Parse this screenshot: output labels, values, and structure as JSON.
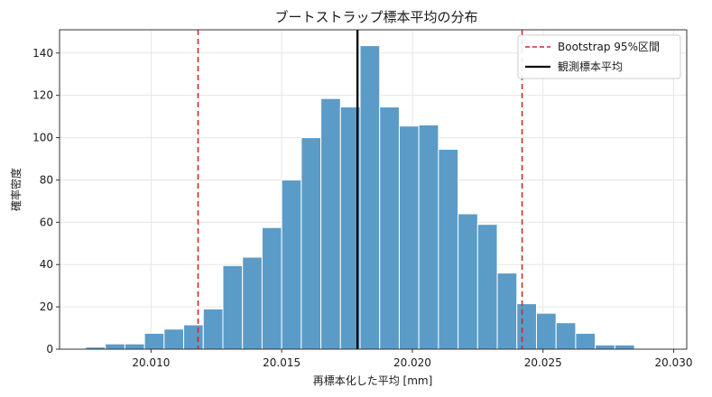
{
  "chart_data": {
    "type": "bar",
    "title": "ブートストラップ標本平均の分布",
    "xlabel": "再標本化した平均 [mm]",
    "ylabel": "確率密度",
    "xlim": [
      20.0065,
      20.0305
    ],
    "ylim": [
      0,
      151
    ],
    "xticks": [
      "20.010",
      "20.015",
      "20.020",
      "20.025",
      "20.030"
    ],
    "xtick_values": [
      20.01,
      20.015,
      20.02,
      20.025,
      20.03
    ],
    "yticks": [
      "0",
      "20",
      "40",
      "60",
      "80",
      "100",
      "120",
      "140"
    ],
    "ytick_values": [
      0,
      20,
      40,
      60,
      80,
      100,
      120,
      140
    ],
    "grid": true,
    "legend_position": "top-right",
    "bar_color": "#5b9bc8",
    "bins": {
      "start": 20.0075,
      "width": 0.00075,
      "values": [
        1,
        2.5,
        2.5,
        7.5,
        9.5,
        11.5,
        19,
        39.5,
        43.5,
        57.5,
        80,
        100,
        118.5,
        114.5,
        143.5,
        114.5,
        105.5,
        106,
        94.5,
        64,
        59,
        36,
        21.5,
        17,
        12.5,
        7.5,
        2,
        2,
        0,
        0
      ]
    },
    "lines": [
      {
        "name": "Bootstrap 95%区間",
        "style": "dashed",
        "color": "#d62728",
        "x": [
          20.0118,
          20.0242
        ]
      },
      {
        "name": "観測標本平均",
        "style": "solid",
        "color": "#000000",
        "x": [
          20.0179
        ]
      }
    ]
  }
}
